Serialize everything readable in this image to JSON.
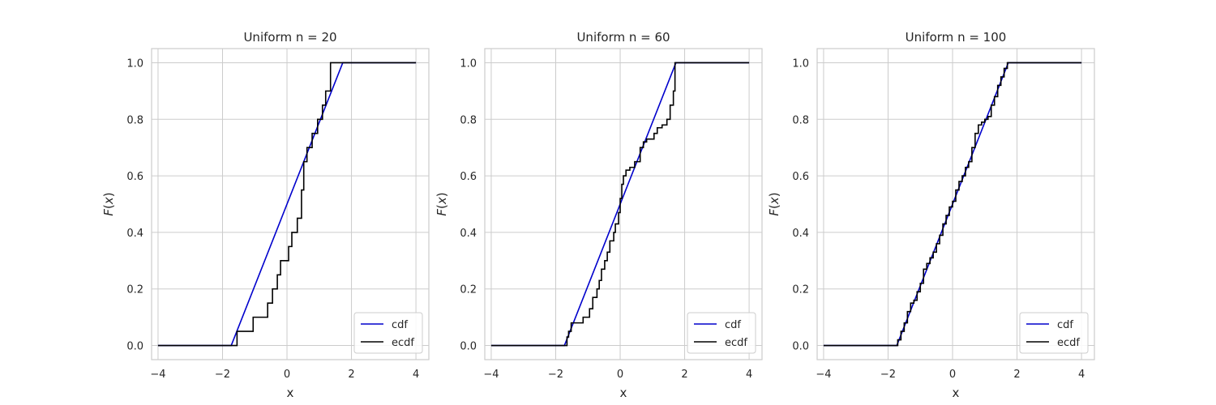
{
  "chart_data": [
    {
      "type": "line",
      "title": "Uniform n = 20",
      "xlabel": "x",
      "ylabel": "F(x)",
      "xlim": [
        -4.2,
        4.4
      ],
      "ylim": [
        -0.05,
        1.05
      ],
      "xticks": [
        -4,
        -2,
        0,
        2,
        4
      ],
      "xtick_labels": [
        "−4",
        "−2",
        "0",
        "2",
        "4"
      ],
      "yticks": [
        0.0,
        0.2,
        0.4,
        0.6,
        0.8,
        1.0
      ],
      "ytick_labels": [
        "0.0",
        "0.2",
        "0.4",
        "0.6",
        "0.8",
        "1.0"
      ],
      "grid": true,
      "legend": "lower-right",
      "series": [
        {
          "name": "cdf",
          "color": "#0000cc",
          "kind": "line",
          "x": [
            -4,
            -1.73,
            1.73,
            4
          ],
          "y": [
            0,
            0,
            1,
            1
          ]
        },
        {
          "name": "ecdf",
          "color": "#000000",
          "kind": "step",
          "x": [
            -4,
            -1.55,
            -1.05,
            -0.6,
            -0.45,
            -0.3,
            -0.2,
            0.05,
            0.15,
            0.32,
            0.45,
            0.52,
            0.62,
            0.78,
            0.95,
            1.1,
            1.2,
            1.35,
            4
          ],
          "y": [
            0.0,
            0.05,
            0.1,
            0.15,
            0.2,
            0.25,
            0.3,
            0.35,
            0.4,
            0.45,
            0.55,
            0.65,
            0.7,
            0.75,
            0.8,
            0.85,
            0.9,
            1.0,
            1.0
          ]
        }
      ]
    },
    {
      "type": "line",
      "title": "Uniform n = 60",
      "xlabel": "x",
      "ylabel": "F(x)",
      "xlim": [
        -4.2,
        4.4
      ],
      "ylim": [
        -0.05,
        1.05
      ],
      "xticks": [
        -4,
        -2,
        0,
        2,
        4
      ],
      "xtick_labels": [
        "−4",
        "−2",
        "0",
        "2",
        "4"
      ],
      "yticks": [
        0.0,
        0.2,
        0.4,
        0.6,
        0.8,
        1.0
      ],
      "ytick_labels": [
        "0.0",
        "0.2",
        "0.4",
        "0.6",
        "0.8",
        "1.0"
      ],
      "grid": true,
      "legend": "lower-right",
      "series": [
        {
          "name": "cdf",
          "color": "#0000cc",
          "kind": "line",
          "x": [
            -4,
            -1.73,
            1.73,
            4
          ],
          "y": [
            0,
            0,
            1,
            1
          ]
        },
        {
          "name": "ecdf",
          "color": "#000000",
          "kind": "step",
          "x": [
            -4,
            -1.65,
            -1.6,
            -1.52,
            -1.15,
            -0.95,
            -0.85,
            -0.72,
            -0.65,
            -0.58,
            -0.48,
            -0.4,
            -0.32,
            -0.2,
            -0.15,
            -0.05,
            0.0,
            0.05,
            0.1,
            0.18,
            0.3,
            0.45,
            0.62,
            0.72,
            0.82,
            1.05,
            1.15,
            1.3,
            1.45,
            1.55,
            1.65,
            1.7,
            4
          ],
          "y": [
            0.0,
            0.03,
            0.05,
            0.08,
            0.1,
            0.13,
            0.17,
            0.2,
            0.23,
            0.27,
            0.3,
            0.33,
            0.37,
            0.4,
            0.43,
            0.47,
            0.52,
            0.57,
            0.6,
            0.62,
            0.63,
            0.65,
            0.7,
            0.72,
            0.73,
            0.75,
            0.77,
            0.78,
            0.8,
            0.85,
            0.9,
            1.0,
            1.0
          ]
        }
      ]
    },
    {
      "type": "line",
      "title": "Uniform n = 100",
      "xlabel": "x",
      "ylabel": "F(x)",
      "xlim": [
        -4.2,
        4.4
      ],
      "ylim": [
        -0.05,
        1.05
      ],
      "xticks": [
        -4,
        -2,
        0,
        2,
        4
      ],
      "xtick_labels": [
        "−4",
        "−2",
        "0",
        "2",
        "4"
      ],
      "yticks": [
        0.0,
        0.2,
        0.4,
        0.6,
        0.8,
        1.0
      ],
      "ytick_labels": [
        "0.0",
        "0.2",
        "0.4",
        "0.6",
        "0.8",
        "1.0"
      ],
      "grid": true,
      "legend": "lower-right",
      "series": [
        {
          "name": "cdf",
          "color": "#0000cc",
          "kind": "line",
          "x": [
            -4,
            -1.73,
            1.73,
            4
          ],
          "y": [
            0,
            0,
            1,
            1
          ]
        },
        {
          "name": "ecdf",
          "color": "#000000",
          "kind": "step",
          "x": [
            -4,
            -1.7,
            -1.6,
            -1.5,
            -1.4,
            -1.3,
            -1.2,
            -1.1,
            -1.0,
            -0.9,
            -0.8,
            -0.7,
            -0.6,
            -0.5,
            -0.4,
            -0.3,
            -0.2,
            -0.1,
            0.0,
            0.1,
            0.2,
            0.3,
            0.4,
            0.5,
            0.6,
            0.7,
            0.8,
            0.9,
            1.0,
            1.1,
            1.2,
            1.3,
            1.4,
            1.5,
            1.6,
            1.7,
            4
          ],
          "y": [
            0.0,
            0.02,
            0.05,
            0.08,
            0.12,
            0.15,
            0.16,
            0.19,
            0.22,
            0.27,
            0.29,
            0.31,
            0.33,
            0.36,
            0.39,
            0.43,
            0.46,
            0.49,
            0.51,
            0.55,
            0.58,
            0.6,
            0.63,
            0.65,
            0.7,
            0.75,
            0.78,
            0.79,
            0.8,
            0.81,
            0.85,
            0.88,
            0.92,
            0.95,
            0.98,
            1.0,
            1.0
          ]
        }
      ]
    }
  ]
}
